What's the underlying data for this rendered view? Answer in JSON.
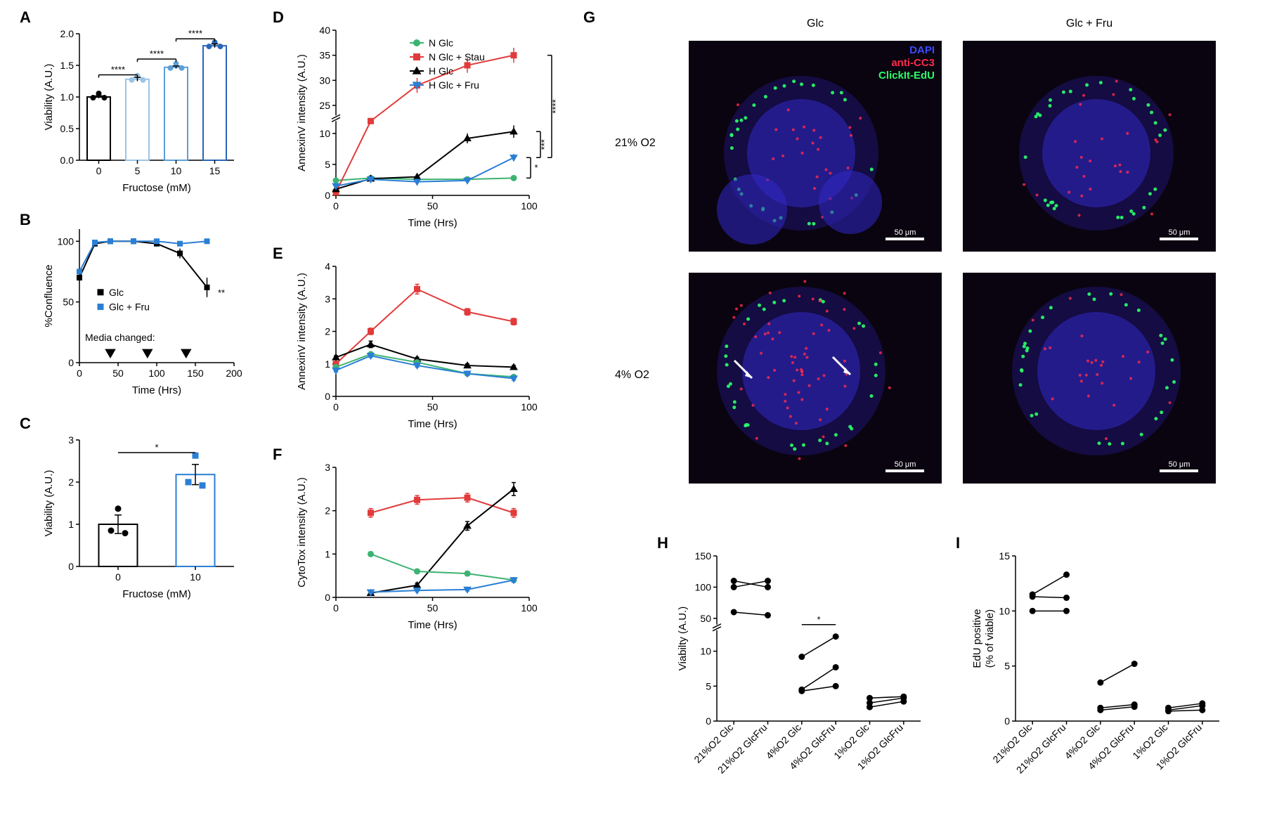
{
  "colors": {
    "black": "#000000",
    "blue": "#2a7fd4",
    "blue_light": "#9ac4e6",
    "blue_mid": "#5b9fd8",
    "blue_dark": "#2a66b8",
    "green": "#3cb371",
    "red": "#e23b3b",
    "grey_bg": "#0a0410"
  },
  "panelA": {
    "type": "bar",
    "label": "A",
    "x_label": "Fructose (mM)",
    "y_label": "Viability (A.U.)",
    "categories": [
      "0",
      "5",
      "10",
      "15"
    ],
    "values": [
      1.0,
      1.28,
      1.47,
      1.81
    ],
    "errors": [
      0.02,
      0.03,
      0.02,
      0.03
    ],
    "bar_colors": [
      "#000000",
      "#9ac4e6",
      "#5b9fd8",
      "#2a66b8"
    ],
    "ylim": [
      0,
      2.0
    ],
    "ytick_step": 0.5,
    "sig": [
      {
        "from": 0,
        "to": 1,
        "label": "****",
        "y": 1.35
      },
      {
        "from": 1,
        "to": 2,
        "label": "****",
        "y": 1.6
      },
      {
        "from": 2,
        "to": 3,
        "label": "****",
        "y": 1.92
      }
    ]
  },
  "panelB": {
    "type": "line",
    "label": "B",
    "x_label": "Time (Hrs)",
    "y_label": "%Confluence",
    "xlim": [
      0,
      200
    ],
    "xtick_step": 50,
    "ylim": [
      0,
      110
    ],
    "yticks": [
      0,
      50,
      100
    ],
    "media_label": "Media changed:",
    "media_marks": [
      40,
      88,
      138
    ],
    "series": [
      {
        "name": "Glc",
        "color": "#000000",
        "marker": "square",
        "x": [
          0,
          20,
          40,
          70,
          100,
          130,
          165
        ],
        "y": [
          70,
          98,
          100,
          100,
          98,
          90,
          62
        ],
        "err": [
          2,
          1,
          1,
          1,
          2,
          4,
          8
        ]
      },
      {
        "name": "Glc + Fru",
        "color": "#2a7fd4",
        "marker": "square",
        "x": [
          0,
          20,
          40,
          70,
          100,
          130,
          165
        ],
        "y": [
          75,
          99,
          100,
          100,
          100,
          98,
          100
        ],
        "err": [
          1,
          1,
          1,
          1,
          1,
          1,
          1
        ]
      }
    ],
    "sig_label": "**",
    "sig_x": 170,
    "sig_y": 55
  },
  "panelC": {
    "type": "bar",
    "label": "C",
    "x_label": "Fructose (mM)",
    "y_label": "Viability (A.U.)",
    "categories": [
      "0",
      "10"
    ],
    "values": [
      1.0,
      2.18
    ],
    "errors": [
      0.22,
      0.24
    ],
    "bar_colors": [
      "#000000",
      "#2a7fd4"
    ],
    "fill_colors": [
      "#ffffff",
      "#ffffff"
    ],
    "ylim": [
      0,
      3.0
    ],
    "ytick_step": 1,
    "scatter": [
      [
        0.85,
        1.37,
        0.79
      ],
      [
        2.0,
        2.63,
        1.92
      ]
    ],
    "sig": {
      "label": "*",
      "y": 2.7
    }
  },
  "panelD": {
    "type": "line",
    "label": "D",
    "x_label": "Time (Hrs)",
    "y_label": "AnnexinV intensity (A.U.)",
    "xlim": [
      0,
      100
    ],
    "xtick_step": 50,
    "ylim": [
      0,
      40
    ],
    "yticks_low": [
      0,
      5,
      10
    ],
    "yticks_high": [
      25,
      30,
      35,
      40
    ],
    "break_at": [
      12,
      23
    ],
    "series": [
      {
        "name": "N Glc",
        "color": "#3cb371",
        "marker": "circle",
        "x": [
          0,
          18,
          42,
          68,
          92
        ],
        "y": [
          2.4,
          2.8,
          2.6,
          2.6,
          2.8
        ],
        "err": [
          0.3,
          0.3,
          0.3,
          0.3,
          0.3
        ]
      },
      {
        "name": "N Glc + Stau",
        "color": "#e23b3b",
        "marker": "square",
        "x": [
          0,
          18,
          42,
          68,
          92
        ],
        "y": [
          0.5,
          14,
          29,
          33,
          35
        ],
        "err": [
          0.3,
          1,
          1.5,
          1.5,
          1.5
        ]
      },
      {
        "name": "H Glc",
        "color": "#000000",
        "marker": "triangle",
        "x": [
          0,
          18,
          42,
          68,
          92
        ],
        "y": [
          1.0,
          2.7,
          3.0,
          9.2,
          10.3
        ],
        "err": [
          0.3,
          0.3,
          0.4,
          0.8,
          1.0
        ]
      },
      {
        "name": "H Glc + Fru",
        "color": "#2a7fd4",
        "marker": "triangledown",
        "x": [
          0,
          18,
          42,
          68,
          92
        ],
        "y": [
          1.5,
          2.6,
          2.2,
          2.4,
          6.1
        ],
        "err": [
          0.3,
          0.3,
          0.3,
          0.3,
          0.6
        ]
      }
    ],
    "sig": [
      {
        "pair": [
          "N Glc + Stau",
          "H Glc + Fru"
        ],
        "label": "****"
      },
      {
        "pair": [
          "H Glc",
          "H Glc + Fru"
        ],
        "label": "***"
      },
      {
        "pair": [
          "N Glc",
          "H Glc + Fru"
        ],
        "label": "*"
      }
    ]
  },
  "panelE": {
    "type": "line",
    "label": "E",
    "x_label": "Time (Hrs)",
    "y_label": "AnnexinV intensity (A.U.)",
    "xlim": [
      0,
      100
    ],
    "xtick_step": 50,
    "ylim": [
      0,
      4
    ],
    "ytick_step": 1,
    "series": [
      {
        "color": "#e23b3b",
        "marker": "square",
        "x": [
          0,
          18,
          42,
          68,
          92
        ],
        "y": [
          1.0,
          2.0,
          3.3,
          2.6,
          2.3
        ],
        "err": [
          0.05,
          0.1,
          0.15,
          0.1,
          0.1
        ]
      },
      {
        "color": "#000000",
        "marker": "triangle",
        "x": [
          0,
          18,
          42,
          68,
          92
        ],
        "y": [
          1.2,
          1.6,
          1.15,
          0.95,
          0.9
        ],
        "err": [
          0.05,
          0.1,
          0.05,
          0.05,
          0.05
        ]
      },
      {
        "color": "#3cb371",
        "marker": "circle",
        "x": [
          0,
          18,
          42,
          68,
          92
        ],
        "y": [
          0.9,
          1.3,
          1.05,
          0.7,
          0.6
        ],
        "err": [
          0.05,
          0.05,
          0.05,
          0.05,
          0.05
        ]
      },
      {
        "color": "#2a7fd4",
        "marker": "triangledown",
        "x": [
          0,
          18,
          42,
          68,
          92
        ],
        "y": [
          0.8,
          1.25,
          0.95,
          0.7,
          0.55
        ],
        "err": [
          0.05,
          0.05,
          0.05,
          0.05,
          0.05
        ]
      }
    ]
  },
  "panelF": {
    "type": "line",
    "label": "F",
    "x_label": "Time (Hrs)",
    "y_label": "CytoTox intensity (A.U.)",
    "xlim": [
      0,
      100
    ],
    "xtick_step": 50,
    "ylim": [
      0,
      3
    ],
    "ytick_step": 1,
    "series": [
      {
        "color": "#e23b3b",
        "marker": "square",
        "x": [
          18,
          42,
          68,
          92
        ],
        "y": [
          1.95,
          2.25,
          2.3,
          1.95
        ],
        "err": [
          0.1,
          0.1,
          0.1,
          0.1
        ]
      },
      {
        "color": "#000000",
        "marker": "triangle",
        "x": [
          18,
          42,
          68,
          92
        ],
        "y": [
          0.1,
          0.28,
          1.65,
          2.5
        ],
        "err": [
          0.05,
          0.05,
          0.1,
          0.15
        ]
      },
      {
        "color": "#3cb371",
        "marker": "circle",
        "x": [
          18,
          42,
          68,
          92
        ],
        "y": [
          1.0,
          0.6,
          0.55,
          0.4
        ],
        "err": [
          0.05,
          0.05,
          0.05,
          0.05
        ]
      },
      {
        "color": "#2a7fd4",
        "marker": "triangledown",
        "x": [
          18,
          42,
          68,
          92
        ],
        "y": [
          0.12,
          0.16,
          0.18,
          0.4
        ],
        "err": [
          0.03,
          0.03,
          0.03,
          0.05
        ]
      }
    ]
  },
  "panelG": {
    "label": "G",
    "col_labels": [
      "Glc",
      "Glc + Fru"
    ],
    "row_labels": [
      "21% O2",
      "4% O2"
    ],
    "legend": [
      {
        "name": "DAPI",
        "color": "#3b4bff"
      },
      {
        "name": "anti-CC3",
        "color": "#ff2a4a"
      },
      {
        "name": "ClickIt-EdU",
        "color": "#2aff6a"
      }
    ],
    "scalebar": "50 μm",
    "has_arrows_panel": [
      false,
      false,
      true,
      false
    ]
  },
  "panelH": {
    "type": "paired-dots",
    "label": "H",
    "y_label": "Viabilty (A.U.)",
    "categories": [
      "21%O2 Glc",
      "21%O2 GlcFru",
      "4%O2 Glc",
      "4%O2 GlcFru",
      "1%O2 Glc",
      "1%O2 GlcFru"
    ],
    "pairs": [
      {
        "left_idx": 0,
        "right_idx": 1,
        "vals": [
          [
            110,
            100
          ],
          [
            100,
            110
          ],
          [
            60,
            55
          ]
        ]
      },
      {
        "left_idx": 2,
        "right_idx": 3,
        "vals": [
          [
            9.2,
            12.1
          ],
          [
            4.5,
            7.7
          ],
          [
            4.3,
            5.0
          ]
        ]
      },
      {
        "left_idx": 4,
        "right_idx": 5,
        "vals": [
          [
            3.3,
            3.5
          ],
          [
            2.6,
            3.3
          ],
          [
            2.0,
            2.8
          ]
        ]
      }
    ],
    "y_low": [
      0,
      5,
      10
    ],
    "y_high": [
      50,
      100,
      150
    ],
    "break_at": [
      13,
      40
    ],
    "sig": {
      "from": 2,
      "to": 3,
      "label": "*",
      "y": 13
    }
  },
  "panelI": {
    "type": "paired-dots",
    "label": "I",
    "y_label_line1": "EdU positive",
    "y_label_line2": "(% of viable)",
    "categories": [
      "21%O2 Glc",
      "21%O2 GlcFru",
      "4%O2 Glc",
      "4%O2 GlcFru",
      "1%O2 Glc",
      "1%O2 GlcFru"
    ],
    "pairs": [
      {
        "left_idx": 0,
        "right_idx": 1,
        "vals": [
          [
            11.5,
            13.3
          ],
          [
            11.3,
            11.2
          ],
          [
            10.0,
            10.0
          ]
        ]
      },
      {
        "left_idx": 2,
        "right_idx": 3,
        "vals": [
          [
            3.5,
            5.2
          ],
          [
            1.2,
            1.5
          ],
          [
            1.0,
            1.3
          ]
        ]
      },
      {
        "left_idx": 4,
        "right_idx": 5,
        "vals": [
          [
            1.2,
            1.6
          ],
          [
            1.0,
            1.4
          ],
          [
            0.9,
            1.0
          ]
        ]
      }
    ],
    "ylim": [
      0,
      15
    ],
    "ytick_step": 5
  }
}
